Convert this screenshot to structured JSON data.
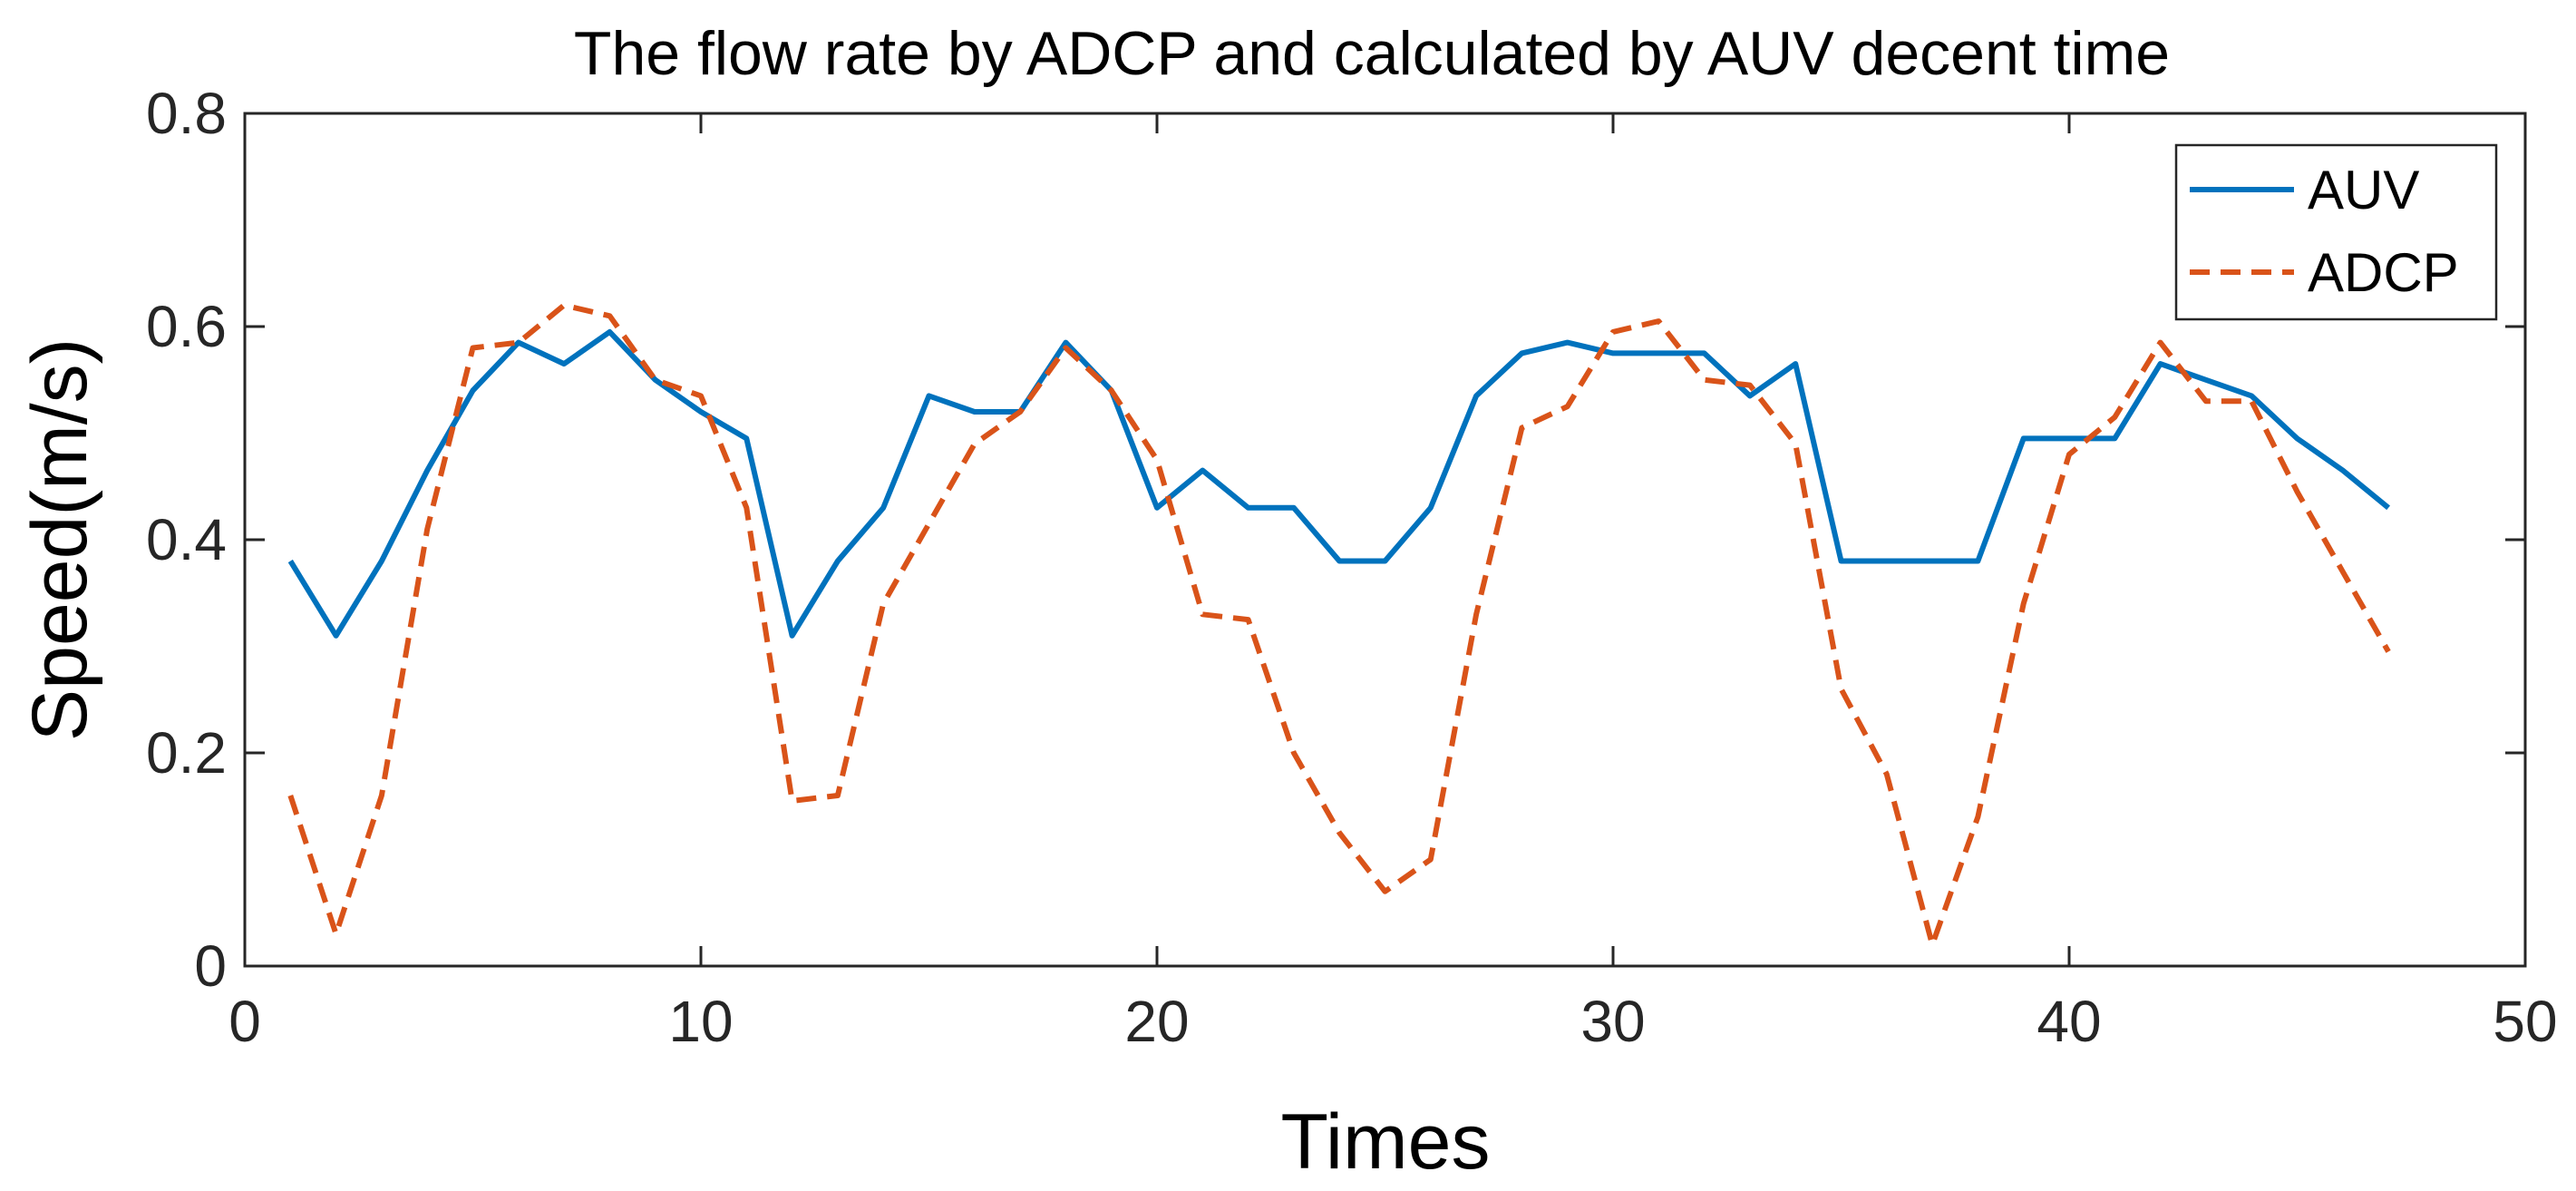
{
  "chart_data": {
    "type": "line",
    "title": "The flow rate by ADCP and calculated by AUV decent time",
    "xlabel": "Times",
    "ylabel": "Speed(m/s)",
    "xlim": [
      0,
      50
    ],
    "ylim": [
      0,
      0.8
    ],
    "xticks": [
      0,
      10,
      20,
      30,
      40,
      50
    ],
    "yticks": [
      0,
      0.2,
      0.4,
      0.6,
      0.8
    ],
    "xtick_labels": [
      "0",
      "10",
      "20",
      "30",
      "40",
      "50"
    ],
    "ytick_labels": [
      "0",
      "0.2",
      "0.4",
      "0.6",
      "0.8"
    ],
    "grid": false,
    "legend_position": "top-right",
    "x": [
      1,
      2,
      3,
      4,
      5,
      6,
      7,
      8,
      9,
      10,
      11,
      12,
      13,
      14,
      15,
      16,
      17,
      18,
      19,
      20,
      21,
      22,
      23,
      24,
      25,
      26,
      27,
      28,
      29,
      30,
      31,
      32,
      33,
      34,
      35,
      36,
      37,
      38,
      39,
      40,
      41,
      42,
      43,
      44,
      45,
      46,
      47
    ],
    "series": [
      {
        "name": "AUV",
        "color": "#0072BD",
        "style": "solid",
        "values": [
          0.38,
          0.31,
          0.38,
          0.465,
          0.54,
          0.585,
          0.565,
          0.595,
          0.55,
          0.52,
          0.495,
          0.31,
          0.38,
          0.43,
          0.535,
          0.52,
          0.52,
          0.585,
          0.54,
          0.43,
          0.465,
          0.43,
          0.43,
          0.38,
          0.38,
          0.43,
          0.535,
          0.575,
          0.585,
          0.575,
          0.575,
          0.575,
          0.535,
          0.565,
          0.38,
          0.38,
          0.38,
          0.38,
          0.495,
          0.495,
          0.495,
          0.565,
          0.55,
          0.535,
          0.495,
          0.465,
          0.43
        ]
      },
      {
        "name": "ADCP",
        "color": "#D95319",
        "style": "dashed",
        "values": [
          0.16,
          0.03,
          0.16,
          0.41,
          0.58,
          0.585,
          0.62,
          0.61,
          0.55,
          0.535,
          0.43,
          0.155,
          0.16,
          0.34,
          0.415,
          0.49,
          0.52,
          0.58,
          0.54,
          0.475,
          0.33,
          0.325,
          0.2,
          0.125,
          0.07,
          0.1,
          0.33,
          0.505,
          0.525,
          0.595,
          0.605,
          0.55,
          0.545,
          0.49,
          0.26,
          0.18,
          0.02,
          0.14,
          0.34,
          0.48,
          0.515,
          0.585,
          0.53,
          0.53,
          0.445,
          0.37,
          0.295
        ]
      }
    ]
  }
}
